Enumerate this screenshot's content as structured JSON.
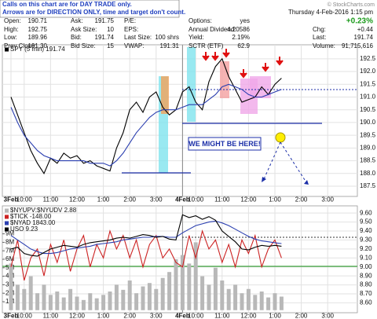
{
  "header": {
    "notes": [
      "Calls on this chart are for DAY TRADE only.",
      "Arrows are for DIRECTION ONLY, time and target don't count."
    ],
    "watermark": "© StockCharts.com",
    "date": "Thursday  4-Feb-2016  1:15 pm",
    "pct_change": "+0.23%",
    "fields": [
      {
        "label": "Open:",
        "value": "190.71"
      },
      {
        "label": "High:",
        "value": "192.75"
      },
      {
        "label": "Low:",
        "value": "189.96"
      },
      {
        "label": "Prev Close:",
        "value": "191.30"
      },
      {
        "label": "Ask:",
        "value": "191.75"
      },
      {
        "label": "Ask Size:",
        "value": "10"
      },
      {
        "label": "Bid:",
        "value": "191.74"
      },
      {
        "label": "Bid Size:",
        "value": "15"
      },
      {
        "label": "P/E:"
      },
      {
        "label": "EPS:"
      },
      {
        "label": "Last Size:",
        "value": "100 shrs"
      },
      {
        "label": "VWAP:",
        "value": "191.31"
      },
      {
        "label": "Options:",
        "value": "yes"
      },
      {
        "label": "Annual Dividend:",
        "value": "4.20586"
      },
      {
        "label": "Yield:",
        "value": "2.19%"
      },
      {
        "label": "SCTR (ETF)",
        "value": "62.9"
      },
      {
        "label": "Chg:",
        "value": "+0.44"
      },
      {
        "label": "Last:",
        "value": "191.74"
      },
      {
        "label": "Volume:",
        "value": "91,715,616"
      }
    ]
  },
  "chart_data": [
    {
      "type": "line",
      "categories": [
        "3Feb",
        null,
        "10:00",
        null,
        null,
        null,
        "11:00",
        null,
        null,
        null,
        "12:00",
        null,
        null,
        null,
        "1:00",
        null,
        null,
        null,
        "2:00",
        null,
        null,
        null,
        "3:00",
        null,
        null,
        null,
        "4Feb",
        null,
        "10:00",
        null,
        null,
        null,
        "11:00",
        null,
        null,
        null,
        "12:00",
        null,
        null,
        null,
        "1:00",
        null,
        null,
        null,
        "2:00",
        null,
        null,
        null,
        "3:00",
        null,
        null,
        null
      ],
      "series": [
        {
          "name": "SPY (5 min) 191.74",
          "color": "#000000",
          "values": [
            191.0,
            190.3,
            189.6,
            188.9,
            188.4,
            188.0,
            188.6,
            188.4,
            188.8,
            188.6,
            188.7,
            188.4,
            188.5,
            188.3,
            188.2,
            188.1,
            189.0,
            189.6,
            190.5,
            190.8,
            190.4,
            191.0,
            191.2,
            190.6,
            190.3,
            190.5,
            191.2,
            191.4,
            190.8,
            190.5,
            191.6,
            192.2,
            192.5,
            191.8,
            191.3,
            190.8,
            190.9,
            191.0,
            191.4,
            191.1,
            191.5,
            191.74,
            null,
            null,
            null,
            null,
            null,
            null,
            null,
            null,
            null,
            null
          ]
        },
        {
          "color": "#2b3fb0",
          "values": [
            190.6,
            190.0,
            189.5,
            189.2,
            188.9,
            188.7,
            188.6,
            188.5,
            188.5,
            188.5,
            188.5,
            188.5,
            188.4,
            188.4,
            188.4,
            188.3,
            188.5,
            188.8,
            189.2,
            189.6,
            189.9,
            190.2,
            190.4,
            190.5,
            190.5,
            190.5,
            190.6,
            190.7,
            190.7,
            190.7,
            190.9,
            191.1,
            191.4,
            191.5,
            191.4,
            191.3,
            191.1,
            191.0,
            191.0,
            191.1,
            191.2,
            191.3,
            null,
            null,
            null,
            null,
            null,
            null,
            null,
            null,
            null,
            null
          ]
        }
      ],
      "annotations": [
        "WE MIGHT BE HERE!"
      ],
      "ylim": [
        187.1,
        193.05
      ],
      "yticks": [
        187.5,
        {
          "value": 188,
          "label": "188.0"
        },
        188.5,
        {
          "value": 189,
          "label": "189.0"
        },
        189.5,
        {
          "value": 190,
          "label": "190.0"
        },
        190.5,
        {
          "value": 191,
          "label": "191.0"
        },
        191.5,
        {
          "value": 192,
          "label": "192.0"
        },
        192.5
      ],
      "grid": true
    },
    {
      "type": "line",
      "categories": [
        "3Feb",
        null,
        "10:00",
        null,
        null,
        null,
        "11:00",
        null,
        null,
        null,
        "12:00",
        null,
        null,
        null,
        "1:00",
        null,
        null,
        null,
        "2:00",
        null,
        null,
        null,
        "3:00",
        null,
        null,
        null,
        "4Feb",
        null,
        "10:00",
        null,
        null,
        null,
        "11:00",
        null,
        null,
        null,
        "12:00",
        null,
        null,
        null,
        "1:00",
        null,
        null,
        null,
        "2:00",
        null,
        null,
        null,
        "3:00",
        null,
        null,
        null
      ],
      "series": [
        {
          "name": "$NYUPV:$NYUDV 2.88",
          "color": "#b8b8b8",
          "type": "bar",
          "axis": "y2",
          "values": [
            5.5,
            3,
            2.5,
            4,
            2,
            3,
            1.8,
            2.2,
            1.5,
            2.5,
            1.6,
            1.2,
            2,
            1.4,
            1.8,
            2.2,
            3,
            2.4,
            3.5,
            2,
            2.8,
            3.2,
            2.5,
            3.8,
            4.5,
            6,
            6.5,
            5.5,
            8,
            4,
            3,
            5,
            3.5,
            2.5,
            3,
            2,
            2.5,
            1.8,
            2.2,
            1.5,
            2,
            1.6,
            null,
            null,
            null,
            null,
            null,
            null,
            null,
            null,
            null,
            null
          ]
        },
        {
          "name": "$TICK -148.00",
          "color": "#cc2222",
          "values": [
            9.0,
            9.3,
            8.85,
            9.1,
            9.2,
            8.9,
            9.25,
            9.05,
            9.3,
            8.95,
            9.2,
            9.35,
            9.0,
            9.25,
            9.1,
            9.4,
            9.2,
            9.35,
            9.1,
            9.3,
            9.0,
            9.25,
            9.35,
            9.1,
            9.2,
            9.05,
            9.0,
            9.35,
            9.1,
            9.4,
            9.2,
            9.3,
            9.05,
            9.25,
            9.0,
            9.3,
            9.15,
            9.35,
            9.0,
            9.2,
            9.3,
            9.1,
            null,
            null,
            null,
            null,
            null,
            null,
            null,
            null,
            null,
            null
          ]
        },
        {
          "name": "$NYAD 1843.00",
          "color": "#2b3fb0",
          "values": [
            9.35,
            9.3,
            9.25,
            9.2,
            9.17,
            9.15,
            9.15,
            9.16,
            9.18,
            9.2,
            9.21,
            9.22,
            9.23,
            9.25,
            9.26,
            9.27,
            9.28,
            9.3,
            9.31,
            9.32,
            9.33,
            9.33,
            9.34,
            9.34,
            9.33,
            9.33,
            9.38,
            9.42,
            9.46,
            9.48,
            9.5,
            9.51,
            9.49,
            9.46,
            9.42,
            9.38,
            9.34,
            9.31,
            9.29,
            9.28,
            9.27,
            9.26,
            null,
            null,
            null,
            null,
            null,
            null,
            null,
            null,
            null,
            null
          ]
        },
        {
          "name": "USO 9.23",
          "color": "#000000",
          "values": [
            9.2,
            9.22,
            9.15,
            9.13,
            9.12,
            9.16,
            9.2,
            9.22,
            9.24,
            9.23,
            9.22,
            9.25,
            9.27,
            9.28,
            9.29,
            9.3,
            9.32,
            9.33,
            9.32,
            9.34,
            9.36,
            9.35,
            9.33,
            9.34,
            9.31,
            9.3,
            9.58,
            9.55,
            9.57,
            9.53,
            9.56,
            9.52,
            9.4,
            9.34,
            9.28,
            9.2,
            9.19,
            9.22,
            9.24,
            9.23,
            9.24,
            9.23,
            null,
            null,
            null,
            null,
            null,
            null,
            null,
            null,
            null,
            null
          ]
        }
      ],
      "ylim": [
        8.49,
        9.68
      ],
      "yticks": [
        {
          "value": 8.6,
          "label": "8.60"
        },
        {
          "value": 8.7,
          "label": "8.70"
        },
        {
          "value": 8.8,
          "label": "8.80"
        },
        {
          "value": 8.9,
          "label": "8.90"
        },
        {
          "value": 9,
          "label": "9.00"
        },
        {
          "value": 9.1,
          "label": "9.10"
        },
        {
          "value": 9.2,
          "label": "9.20"
        },
        {
          "value": 9.3,
          "label": "9.30"
        },
        {
          "value": 9.4,
          "label": "9.40"
        },
        {
          "value": 9.5,
          "label": "9.50"
        },
        {
          "value": 9.6,
          "label": "9.60"
        }
      ],
      "y2lim": [
        -0.3,
        12.3
      ],
      "y2ticks": [
        {
          "value": 1,
          "label": "1M"
        },
        {
          "value": 2,
          "label": "2M"
        },
        {
          "value": 3,
          "label": "3M"
        },
        {
          "value": 4,
          "label": "4M"
        },
        {
          "value": 5,
          "label": "5M"
        },
        {
          "value": 6,
          "label": "6M"
        },
        {
          "value": 7,
          "label": "7M"
        },
        {
          "value": 8,
          "label": "8M"
        },
        {
          "value": 9,
          "label": "9M"
        }
      ],
      "grid": true
    }
  ]
}
